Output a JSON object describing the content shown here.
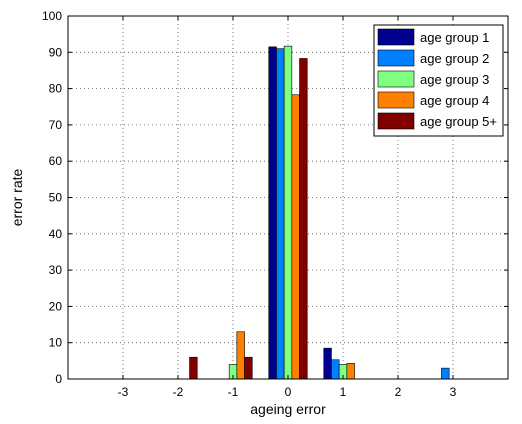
{
  "chart_data": {
    "type": "bar",
    "title": "",
    "xlabel": "ageing error",
    "ylabel": "error rate",
    "x": [
      -3,
      -2,
      -1,
      0,
      1,
      2,
      3
    ],
    "xlim": [
      -4,
      4
    ],
    "ylim": [
      0,
      100
    ],
    "xticks": [
      -3,
      -2,
      -1,
      0,
      1,
      2,
      3
    ],
    "yticks": [
      0,
      10,
      20,
      30,
      40,
      50,
      60,
      70,
      80,
      90,
      100
    ],
    "grid": true,
    "legend_position": "top-right",
    "series": [
      {
        "name": "age group 1",
        "color": "#00008F",
        "values": [
          0,
          0,
          0,
          91.5,
          8.5,
          0,
          0
        ]
      },
      {
        "name": "age group 2",
        "color": "#0080FF",
        "values": [
          0,
          0,
          0,
          91.0,
          5.3,
          0,
          3.0
        ]
      },
      {
        "name": "age group 3",
        "color": "#80FF80",
        "values": [
          0,
          0,
          4.0,
          91.7,
          4.0,
          0,
          0
        ]
      },
      {
        "name": "age group 4",
        "color": "#FF8000",
        "values": [
          0,
          0,
          13.0,
          78.3,
          4.3,
          0,
          0
        ]
      },
      {
        "name": "age group 5+",
        "color": "#800000",
        "values": [
          0,
          6.0,
          6.0,
          88.3,
          0,
          0,
          0
        ]
      }
    ]
  }
}
